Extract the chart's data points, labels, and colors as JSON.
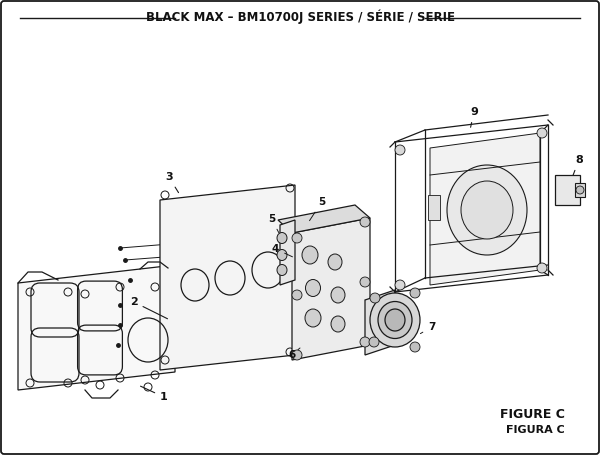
{
  "title": "BLACK MAX – BM10700J SERIES / SÉRIE / SERIE",
  "figure_label_1": "FIGURE C",
  "figure_label_2": "FIGURA C",
  "bg_color": "#ffffff",
  "border_color": "#1a1a1a",
  "line_color": "#1a1a1a",
  "text_color": "#111111",
  "title_fontsize": 8.5,
  "figsize": [
    6.0,
    4.55
  ],
  "dpi": 100
}
